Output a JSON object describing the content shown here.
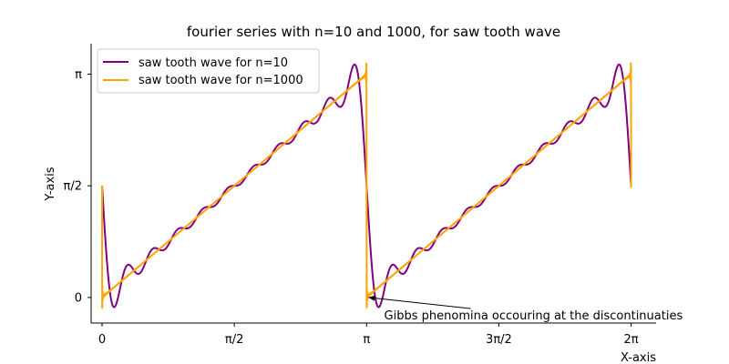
{
  "chart_data": {
    "type": "line",
    "title": "fourier series with n=10 and 1000, for saw tooth wave",
    "xlabel": "X-axis",
    "ylabel": "Y-axis",
    "xlim": [
      -0.13,
      6.58
    ],
    "ylim": [
      -0.36,
      3.57
    ],
    "xticks": [
      {
        "value": 0,
        "label": "0"
      },
      {
        "value": 1.5708,
        "label": "π/2"
      },
      {
        "value": 3.1416,
        "label": "π"
      },
      {
        "value": 4.7124,
        "label": "3π/2"
      },
      {
        "value": 6.2832,
        "label": "2π"
      }
    ],
    "yticks": [
      {
        "value": 0,
        "label": "0"
      },
      {
        "value": 1.5708,
        "label": "π/2"
      },
      {
        "value": 3.1416,
        "label": "π"
      }
    ],
    "x_range": [
      0,
      6.2832
    ],
    "series": [
      {
        "name": "saw tooth wave for n=10",
        "terms": 10,
        "color": "#800080"
      },
      {
        "name": "saw tooth wave for n=1000",
        "terms": 1000,
        "color": "#ffa500"
      }
    ],
    "legend_position": "top-left",
    "spines": "left-bottom",
    "annotation": {
      "text": "Gibbs phenomina occouring at the discontinuaties",
      "point": [
        3.1416,
        0
      ],
      "text_position": [
        3.35,
        -0.31
      ]
    }
  }
}
